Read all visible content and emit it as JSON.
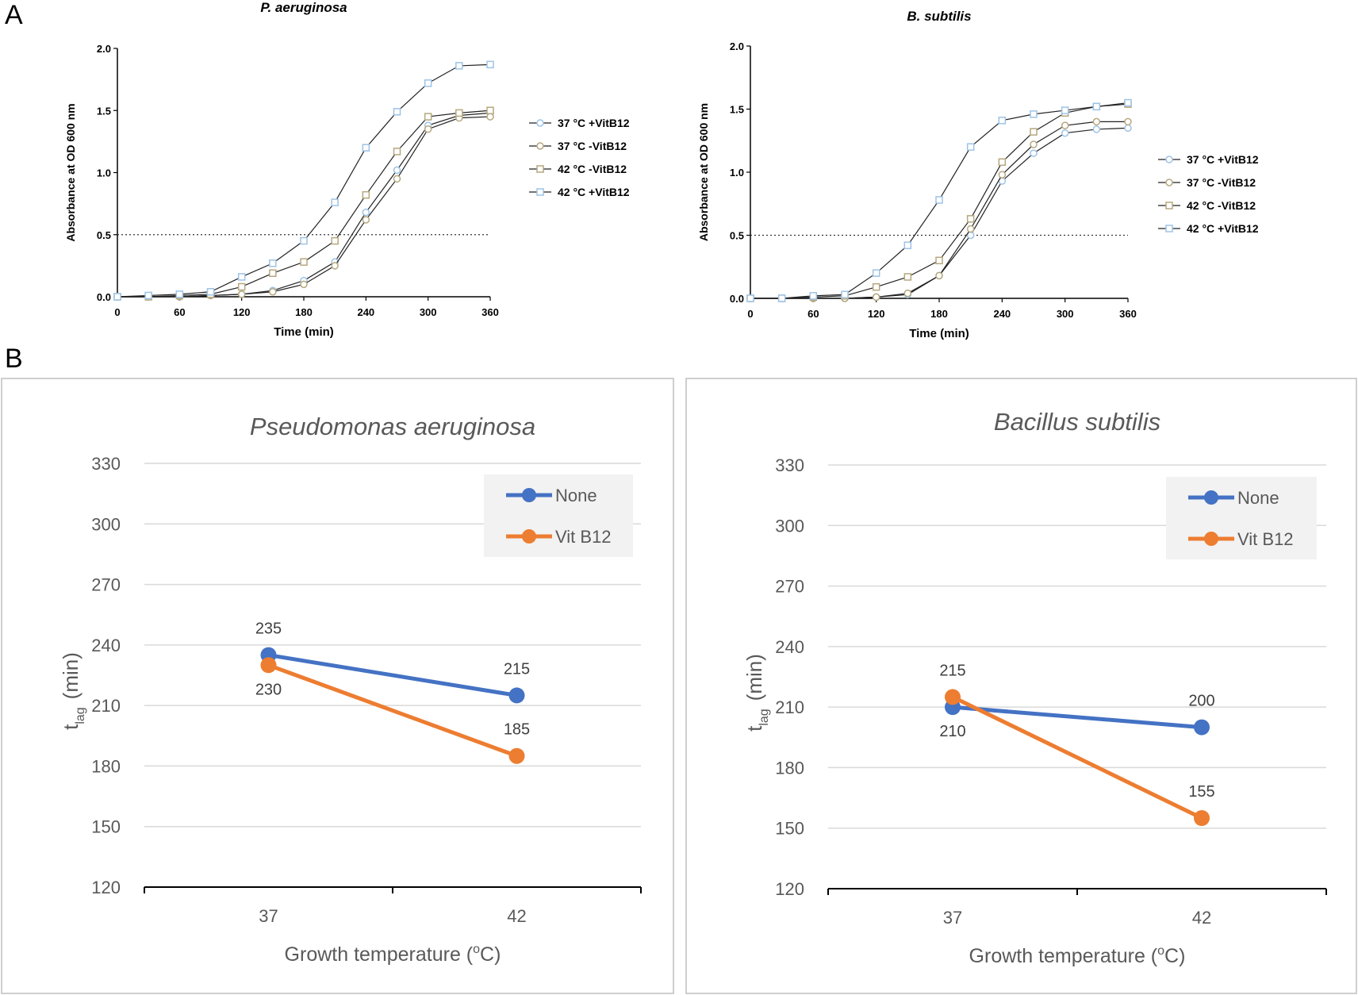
{
  "panel_labels": {
    "a": "A",
    "b": "B"
  },
  "colors": {
    "none": "#4472C4",
    "vit": "#ED7D31",
    "grid": "#D9D9D9",
    "box": "#BFBFBF",
    "legend_bg": "#F2F2F2"
  },
  "chart_data": [
    {
      "type": "line",
      "title": "P. aeruginosa",
      "xlabel": "Time (min)",
      "ylabel": "Absorbance at OD 600 nm",
      "xlim": [
        0,
        360
      ],
      "ylim": [
        0,
        2.0
      ],
      "x_ticks": [
        "0",
        "60",
        "120",
        "180",
        "240",
        "300",
        "360"
      ],
      "y_ticks": [
        "0.0",
        "0.5",
        "1.0",
        "1.5",
        "2.0"
      ],
      "reference_line": 0.5,
      "legend_position": "right",
      "x": [
        0,
        30,
        60,
        90,
        120,
        150,
        180,
        210,
        240,
        270,
        300,
        330,
        360
      ],
      "series": [
        {
          "name": "37 °C +VitB12",
          "marker": "circle",
          "color": "#9DC3E6",
          "values": [
            0,
            0,
            0,
            0.01,
            0.02,
            0.05,
            0.13,
            0.28,
            0.68,
            1.02,
            1.38,
            1.46,
            1.48
          ]
        },
        {
          "name": "37 °C -VitB12",
          "marker": "circle",
          "color": "#B5A77E",
          "values": [
            0,
            0,
            0,
            0.01,
            0.02,
            0.04,
            0.1,
            0.25,
            0.62,
            0.95,
            1.35,
            1.44,
            1.45
          ]
        },
        {
          "name": "42 °C -VitB12",
          "marker": "square",
          "color": "#B5A77E",
          "values": [
            0,
            0,
            0.01,
            0.02,
            0.08,
            0.19,
            0.28,
            0.45,
            0.82,
            1.17,
            1.45,
            1.48,
            1.5
          ]
        },
        {
          "name": "42 °C +VitB12",
          "marker": "square",
          "color": "#9DC3E6",
          "values": [
            0,
            0.01,
            0.02,
            0.04,
            0.16,
            0.27,
            0.45,
            0.76,
            1.2,
            1.49,
            1.72,
            1.86,
            1.87
          ]
        }
      ]
    },
    {
      "type": "line",
      "title": "B. subtilis",
      "xlabel": "Time (min)",
      "ylabel": "Absorbance at OD 600 nm",
      "xlim": [
        0,
        360
      ],
      "ylim": [
        0,
        2.0
      ],
      "x_ticks": [
        "0",
        "60",
        "120",
        "180",
        "240",
        "300",
        "360"
      ],
      "y_ticks": [
        "0.0",
        "0.5",
        "1.0",
        "1.5",
        "2.0"
      ],
      "reference_line": 0.5,
      "legend_position": "right",
      "x": [
        0,
        30,
        60,
        90,
        120,
        150,
        180,
        210,
        240,
        270,
        300,
        330,
        360
      ],
      "series": [
        {
          "name": "37 °C +VitB12",
          "marker": "circle",
          "color": "#9DC3E6",
          "values": [
            0,
            0,
            0,
            0,
            0.01,
            0.03,
            0.18,
            0.5,
            0.93,
            1.15,
            1.31,
            1.34,
            1.35
          ]
        },
        {
          "name": "37 °C -VitB12",
          "marker": "circle",
          "color": "#B5A77E",
          "values": [
            0,
            0,
            0,
            0,
            0.01,
            0.04,
            0.18,
            0.55,
            0.98,
            1.22,
            1.37,
            1.4,
            1.4
          ]
        },
        {
          "name": "42 °C -VitB12",
          "marker": "square",
          "color": "#B5A77E",
          "values": [
            0,
            0,
            0.01,
            0.02,
            0.09,
            0.17,
            0.3,
            0.63,
            1.08,
            1.32,
            1.47,
            1.52,
            1.54
          ]
        },
        {
          "name": "42 °C +VitB12",
          "marker": "square",
          "color": "#9DC3E6",
          "values": [
            0,
            0,
            0.02,
            0.03,
            0.2,
            0.42,
            0.78,
            1.2,
            1.41,
            1.46,
            1.49,
            1.52,
            1.55
          ]
        }
      ]
    },
    {
      "type": "line",
      "title": "Pseudomonas aeruginosa",
      "xlabel": "Growth temperature (oC)",
      "ylabel": "tlag  (min)",
      "ylabel_main": "t",
      "ylabel_sub": "lag",
      "ylabel_rest": "(min)",
      "xlabel_main": "Growth temperature (",
      "xlabel_sup": "o",
      "xlabel_rest": "C)",
      "categories": [
        "37",
        "42"
      ],
      "ylim": [
        120,
        330
      ],
      "y_ticks": [
        "120",
        "150",
        "180",
        "210",
        "240",
        "270",
        "300",
        "330"
      ],
      "legend_position": "top-right",
      "series": [
        {
          "name": "None",
          "color": "#4472C4",
          "values": [
            235,
            215
          ],
          "labels": [
            "235",
            "215"
          ]
        },
        {
          "name": "Vit B12",
          "color": "#ED7D31",
          "values": [
            230,
            185
          ],
          "labels": [
            "230",
            "185"
          ]
        }
      ]
    },
    {
      "type": "line",
      "title": "Bacillus subtilis",
      "xlabel": "Growth temperature (oC)",
      "ylabel": "tlag  (min)",
      "ylabel_main": "t",
      "ylabel_sub": "lag",
      "ylabel_rest": "(min)",
      "xlabel_main": "Growth temperature (",
      "xlabel_sup": "o",
      "xlabel_rest": "C)",
      "categories": [
        "37",
        "42"
      ],
      "ylim": [
        120,
        330
      ],
      "y_ticks": [
        "120",
        "150",
        "180",
        "210",
        "240",
        "270",
        "300",
        "330"
      ],
      "legend_position": "top-right",
      "series": [
        {
          "name": "None",
          "color": "#4472C4",
          "values": [
            210,
            200
          ],
          "labels": [
            "210",
            "200"
          ]
        },
        {
          "name": "Vit B12",
          "color": "#ED7D31",
          "values": [
            215,
            155
          ],
          "labels": [
            "215",
            "155"
          ]
        }
      ]
    }
  ]
}
